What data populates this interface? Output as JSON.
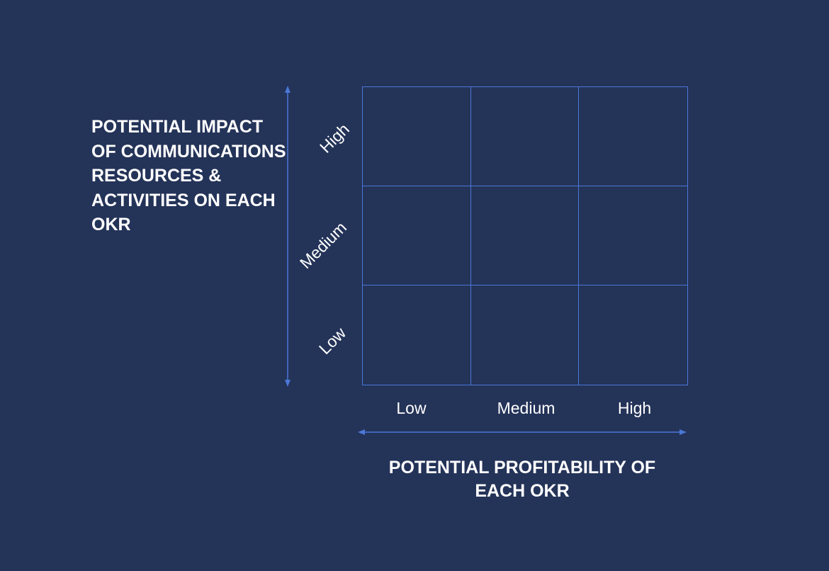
{
  "y_axis": {
    "title": "POTENTIAL IMPACT OF COMMUNICATIONS RESOURCES & ACTIVITIES ON EACH OKR",
    "ticks": [
      "High",
      "Medium",
      "Low"
    ]
  },
  "x_axis": {
    "title": "POTENTIAL PROFITABILITY OF EACH OKR",
    "ticks": [
      "Low",
      "Medium",
      "High"
    ]
  },
  "matrix": {
    "rows": 3,
    "cols": 3
  },
  "colors": {
    "background": "#243358",
    "grid_line": "#4a78d8",
    "arrow": "#4a78d8",
    "text": "#ffffff"
  }
}
